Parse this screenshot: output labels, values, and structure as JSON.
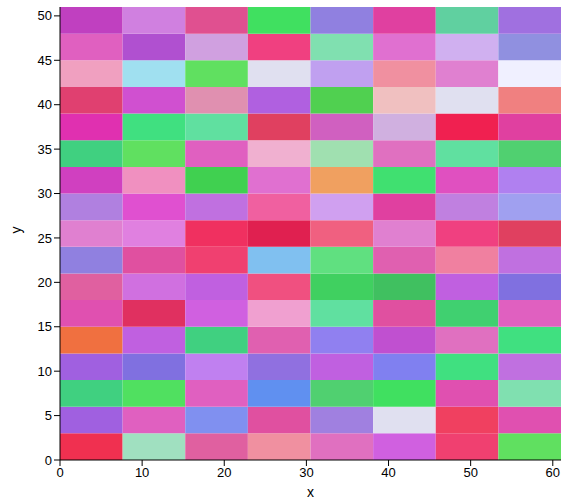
{
  "chart_data": {
    "type": "heatmap",
    "x_label": "x",
    "y_label": "y",
    "xlim": [
      0,
      61
    ],
    "ylim": [
      0,
      51
    ],
    "xticks": [
      0,
      10,
      20,
      30,
      40,
      50,
      60
    ],
    "yticks": [
      0,
      5,
      10,
      15,
      20,
      25,
      30,
      35,
      40,
      45,
      50
    ],
    "cells": {
      "x_edges": [
        0,
        7.625,
        15.25,
        22.875,
        30.5,
        38.125,
        45.75,
        53.375,
        61
      ],
      "y_edges": [
        0,
        3,
        6,
        9,
        12,
        15,
        18,
        21,
        24,
        27,
        30,
        33,
        36,
        39,
        42,
        45,
        48,
        51
      ],
      "colors": [
        [
          "#f03050",
          "#a0e0c0",
          "#e060a0",
          "#f090a0",
          "#e070c0",
          "#d060e0",
          "#f04070",
          "#60e060"
        ],
        [
          "#a060e0",
          "#e060c0",
          "#8090f0",
          "#e050a0",
          "#a080e0",
          "#e0e0f0",
          "#f04060",
          "#e050b0"
        ],
        [
          "#40d080",
          "#50e060",
          "#e060c0",
          "#6090f0",
          "#50d070",
          "#40e060",
          "#e050b0",
          "#80e0b0"
        ],
        [
          "#a060e0",
          "#8070e0",
          "#c080f0",
          "#9070e0",
          "#c060e0",
          "#8080f0",
          "#40e080",
          "#c070e0"
        ],
        [
          "#f07040",
          "#c060e0",
          "#40d080",
          "#e060b0",
          "#9080f0",
          "#c050d0",
          "#e070c0",
          "#40e080"
        ],
        [
          "#e050b0",
          "#e03060",
          "#d060e0",
          "#f0a0d0",
          "#60e0a0",
          "#e050a0",
          "#40d070",
          "#e060c0"
        ],
        [
          "#e060a0",
          "#d070e0",
          "#c060e0",
          "#f05080",
          "#40d060",
          "#40c060",
          "#c060e0",
          "#8070e0"
        ],
        [
          "#9080e0",
          "#e050a0",
          "#f04070",
          "#80c0f0",
          "#60e080",
          "#e060b0",
          "#f080a0",
          "#c070e0"
        ],
        [
          "#e080d0",
          "#e080e0",
          "#f03060",
          "#e02050",
          "#f06080",
          "#e080d0",
          "#f04080",
          "#e04060"
        ],
        [
          "#b080e0",
          "#e050d0",
          "#c070e0",
          "#f060a0",
          "#d0a0f0",
          "#e040a0",
          "#c080e0",
          "#a0a0f0"
        ],
        [
          "#d040c0",
          "#f090c0",
          "#40d050",
          "#e070d0",
          "#f0a060",
          "#40e070",
          "#e050c0",
          "#b080f0"
        ],
        [
          "#40d080",
          "#60e060",
          "#e060c0",
          "#f0b0d0",
          "#a0e0b0",
          "#e070c0",
          "#60e0a0",
          "#50d070"
        ],
        [
          "#e030b0",
          "#40e080",
          "#60e0a0",
          "#e04060",
          "#d060c0",
          "#d0b0e0",
          "#f02050",
          "#e040a0"
        ],
        [
          "#e04070",
          "#d050d0",
          "#e090b0",
          "#b060e0",
          "#50d050",
          "#f0c0c0",
          "#e0e0f0",
          "#f08080"
        ],
        [
          "#f0a0c0",
          "#a0e0f0",
          "#60e060",
          "#e0e0f0",
          "#c0a0f0",
          "#f090a0",
          "#e080d0",
          "#f0f0ff"
        ],
        [
          "#e060c0",
          "#b050d0",
          "#d0a0e0",
          "#f04080",
          "#80e0b0",
          "#e070d0",
          "#d0b0f0",
          "#9090e0"
        ],
        [
          "#c040c0",
          "#d080e0",
          "#e05090",
          "#40e060",
          "#9080e0",
          "#e040a0",
          "#60d0a0",
          "#a070e0"
        ]
      ]
    }
  }
}
